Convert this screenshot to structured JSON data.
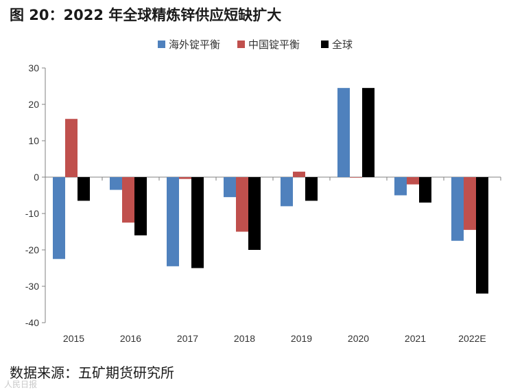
{
  "figure": {
    "title": "图 20：2022 年全球精炼锌供应短缺扩大",
    "source": "数据来源：五矿期货研究所",
    "watermark": "人民日报"
  },
  "chart_data": {
    "type": "bar",
    "categories": [
      "2015",
      "2016",
      "2017",
      "2018",
      "2019",
      "2020",
      "2021",
      "2022E"
    ],
    "series": [
      {
        "name": "海外锭平衡",
        "color": "#4f81bd",
        "values": [
          -22.5,
          -3.5,
          -24.5,
          -5.5,
          -8,
          24.5,
          -5,
          -17.5
        ]
      },
      {
        "name": "中国锭平衡",
        "color": "#c0504d",
        "values": [
          16,
          -12.5,
          -0.5,
          -15,
          1.5,
          0,
          -2,
          -14.5
        ]
      },
      {
        "name": "全球",
        "color": "#000000",
        "values": [
          -6.5,
          -16,
          -25,
          -20,
          -6.5,
          24.5,
          -7,
          -32
        ]
      }
    ],
    "ylim": [
      -40,
      30
    ],
    "yticks": [
      30,
      20,
      10,
      0,
      -10,
      -20,
      -30,
      -40
    ],
    "legend_position": "top-center",
    "grid": false
  }
}
